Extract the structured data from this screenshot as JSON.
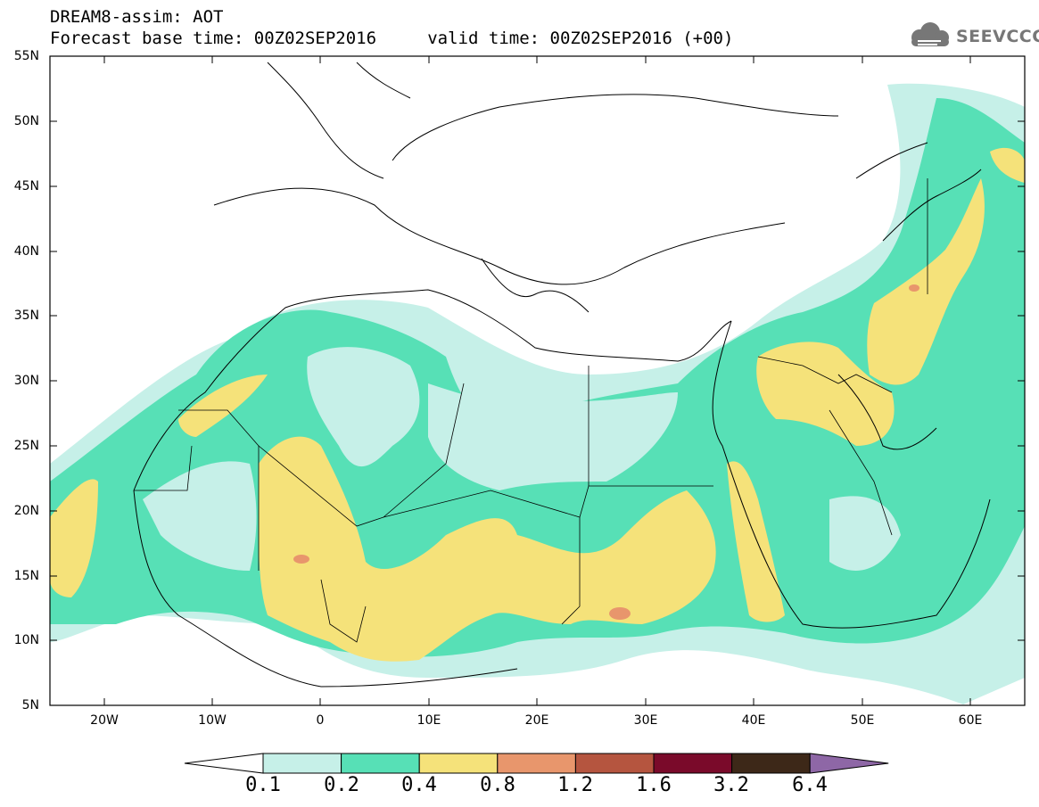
{
  "header": {
    "line1": "DREAM8-assim: AOT",
    "line2": "Forecast base time: 00Z02SEP2016     valid time: 00Z02SEP2016 (+00)",
    "logo_text": "SEEVCCC"
  },
  "map": {
    "lon_range": [
      -25,
      65
    ],
    "lat_range": [
      5,
      55
    ],
    "y_ticks": [
      "55N",
      "50N",
      "45N",
      "40N",
      "35N",
      "30N",
      "25N",
      "20N",
      "15N",
      "10N",
      "5N"
    ],
    "x_ticks": [
      "20W",
      "10W",
      "0",
      "10E",
      "20E",
      "30E",
      "40E",
      "50E",
      "60E"
    ]
  },
  "legend": {
    "levels": [
      "0.1",
      "0.2",
      "0.4",
      "0.8",
      "1.2",
      "1.6",
      "3.2",
      "6.4"
    ],
    "colors": [
      "#c6f0e8",
      "#57e0b6",
      "#f5e27a",
      "#e8966c",
      "#b5553f",
      "#7a0a2a",
      "#3d2818",
      "#8e67a6"
    ]
  }
}
